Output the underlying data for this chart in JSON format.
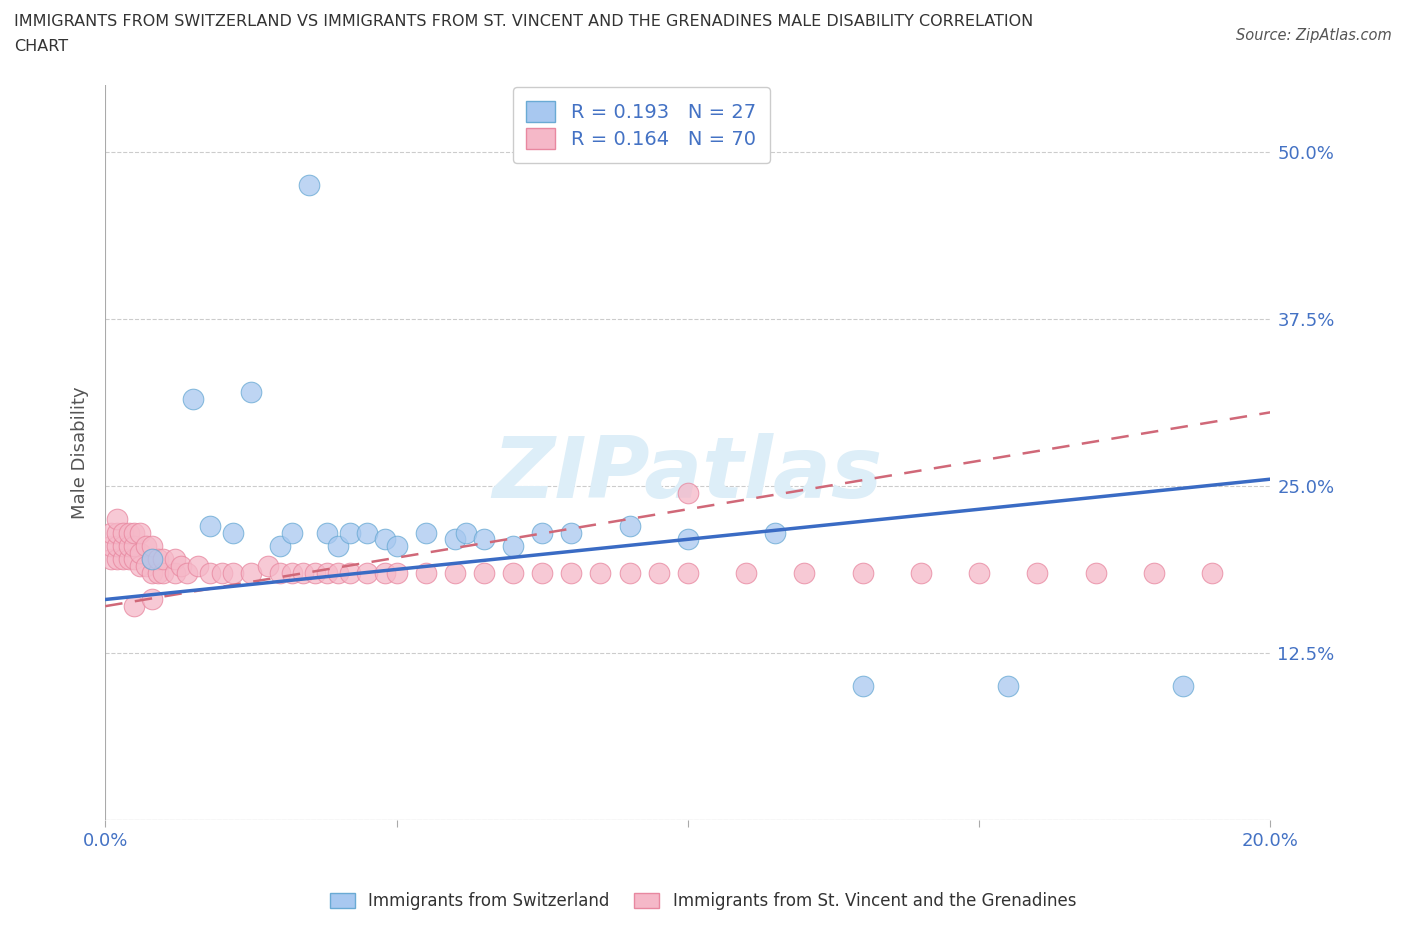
{
  "title_line1": "IMMIGRANTS FROM SWITZERLAND VS IMMIGRANTS FROM ST. VINCENT AND THE GRENADINES MALE DISABILITY CORRELATION",
  "title_line2": "CHART",
  "source": "Source: ZipAtlas.com",
  "ylabel": "Male Disability",
  "xlim": [
    0.0,
    0.2
  ],
  "ylim": [
    0.0,
    0.55
  ],
  "switzerland_color": "#a8c8f0",
  "switzerland_edge_color": "#6aaad4",
  "svg_color": "#f5b8c8",
  "svg_edge_color": "#e888a0",
  "switzerland_R": 0.193,
  "switzerland_N": 27,
  "svg_R": 0.164,
  "svg_N": 70,
  "switzerland_line_color": "#3a6bc4",
  "svg_line_color": "#d06878",
  "watermark_color": "#ddeef8",
  "background_color": "#ffffff",
  "sw_x": [
    0.008,
    0.015,
    0.018,
    0.022,
    0.025,
    0.03,
    0.032,
    0.035,
    0.038,
    0.04,
    0.042,
    0.045,
    0.048,
    0.05,
    0.055,
    0.06,
    0.062,
    0.065,
    0.07,
    0.075,
    0.08,
    0.09,
    0.1,
    0.115,
    0.13,
    0.155,
    0.185
  ],
  "sw_y": [
    0.195,
    0.315,
    0.22,
    0.215,
    0.32,
    0.205,
    0.215,
    0.475,
    0.215,
    0.205,
    0.215,
    0.215,
    0.21,
    0.205,
    0.215,
    0.21,
    0.215,
    0.21,
    0.205,
    0.215,
    0.215,
    0.22,
    0.21,
    0.215,
    0.1,
    0.1,
    0.1
  ],
  "svg_x": [
    0.001,
    0.001,
    0.001,
    0.002,
    0.002,
    0.002,
    0.002,
    0.003,
    0.003,
    0.003,
    0.004,
    0.004,
    0.004,
    0.005,
    0.005,
    0.005,
    0.006,
    0.006,
    0.006,
    0.007,
    0.007,
    0.008,
    0.008,
    0.008,
    0.009,
    0.009,
    0.01,
    0.01,
    0.012,
    0.012,
    0.013,
    0.014,
    0.016,
    0.018,
    0.02,
    0.022,
    0.025,
    0.028,
    0.03,
    0.032,
    0.034,
    0.036,
    0.038,
    0.04,
    0.042,
    0.045,
    0.048,
    0.05,
    0.055,
    0.06,
    0.065,
    0.07,
    0.075,
    0.08,
    0.085,
    0.09,
    0.095,
    0.1,
    0.11,
    0.12,
    0.13,
    0.14,
    0.15,
    0.16,
    0.17,
    0.18,
    0.19,
    0.1,
    0.005,
    0.008
  ],
  "svg_y": [
    0.195,
    0.205,
    0.215,
    0.195,
    0.205,
    0.215,
    0.225,
    0.195,
    0.205,
    0.215,
    0.195,
    0.205,
    0.215,
    0.195,
    0.205,
    0.215,
    0.19,
    0.2,
    0.215,
    0.19,
    0.205,
    0.185,
    0.195,
    0.205,
    0.185,
    0.195,
    0.185,
    0.195,
    0.185,
    0.195,
    0.19,
    0.185,
    0.19,
    0.185,
    0.185,
    0.185,
    0.185,
    0.19,
    0.185,
    0.185,
    0.185,
    0.185,
    0.185,
    0.185,
    0.185,
    0.185,
    0.185,
    0.185,
    0.185,
    0.185,
    0.185,
    0.185,
    0.185,
    0.185,
    0.185,
    0.185,
    0.185,
    0.185,
    0.185,
    0.185,
    0.185,
    0.185,
    0.185,
    0.185,
    0.185,
    0.185,
    0.185,
    0.245,
    0.16,
    0.165
  ],
  "sw_line_x0": 0.0,
  "sw_line_y0": 0.165,
  "sw_line_x1": 0.2,
  "sw_line_y1": 0.255,
  "svg_line_x0": 0.0,
  "svg_line_y0": 0.16,
  "svg_line_x1": 0.2,
  "svg_line_y1": 0.305
}
